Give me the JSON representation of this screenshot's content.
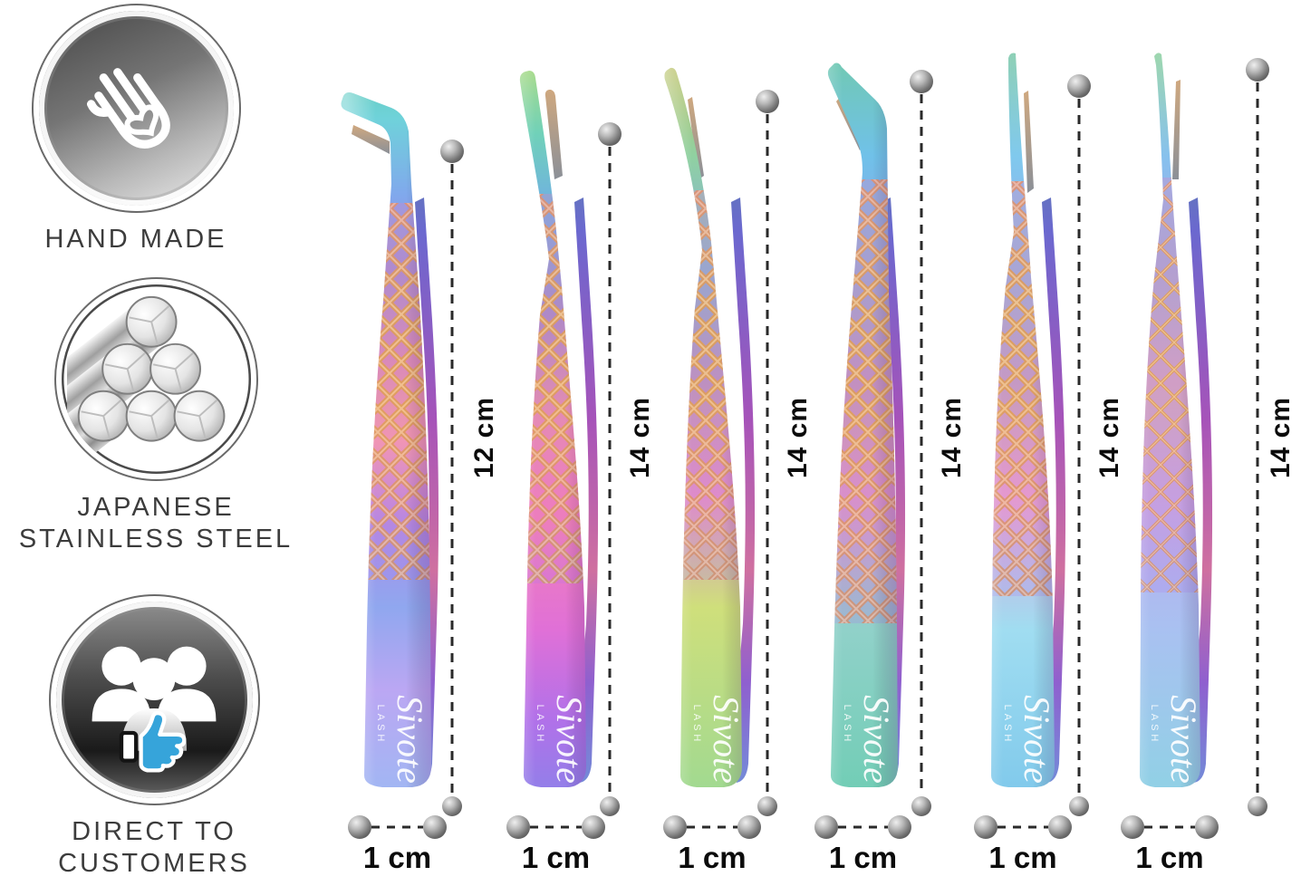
{
  "brand": {
    "logo_text": "Sivote",
    "logo_sub": "LASH"
  },
  "badges": [
    {
      "id": "hand-made",
      "label": "HAND MADE",
      "icon": "hand-heart-icon"
    },
    {
      "id": "japanese-stainless-steel",
      "label": "JAPANESE STAINLESS STEEL",
      "icon": "steel-rods-icon"
    },
    {
      "id": "direct-to-customers",
      "label": "DIRECT TO CUSTOMERS",
      "icon": "customers-thumbs-up-icon"
    }
  ],
  "tweezers": [
    {
      "name": "tweezer-1",
      "tip_style": "90-degree boot tip",
      "length_label": "12 cm",
      "width_label": "1 cm"
    },
    {
      "name": "tweezer-2",
      "tip_style": "45-degree angled tip",
      "length_label": "14 cm",
      "width_label": "1 cm"
    },
    {
      "name": "tweezer-3",
      "tip_style": "curved tip",
      "length_label": "14 cm",
      "width_label": "1 cm"
    },
    {
      "name": "tweezer-4",
      "tip_style": "90-degree boot tip",
      "length_label": "14 cm",
      "width_label": "1 cm"
    },
    {
      "name": "tweezer-5",
      "tip_style": "curved tip",
      "length_label": "14 cm",
      "width_label": "1 cm"
    },
    {
      "name": "tweezer-6",
      "tip_style": "straight fine tip",
      "length_label": "14 cm",
      "width_label": "1 cm"
    }
  ],
  "colors": {
    "accent_blue": "#36a4da",
    "lattice_gold": "#d89a55",
    "dashed_line": "#2a2a2a",
    "measure_text": "#0b0b0b",
    "badge_text": "#3c3c3c"
  }
}
